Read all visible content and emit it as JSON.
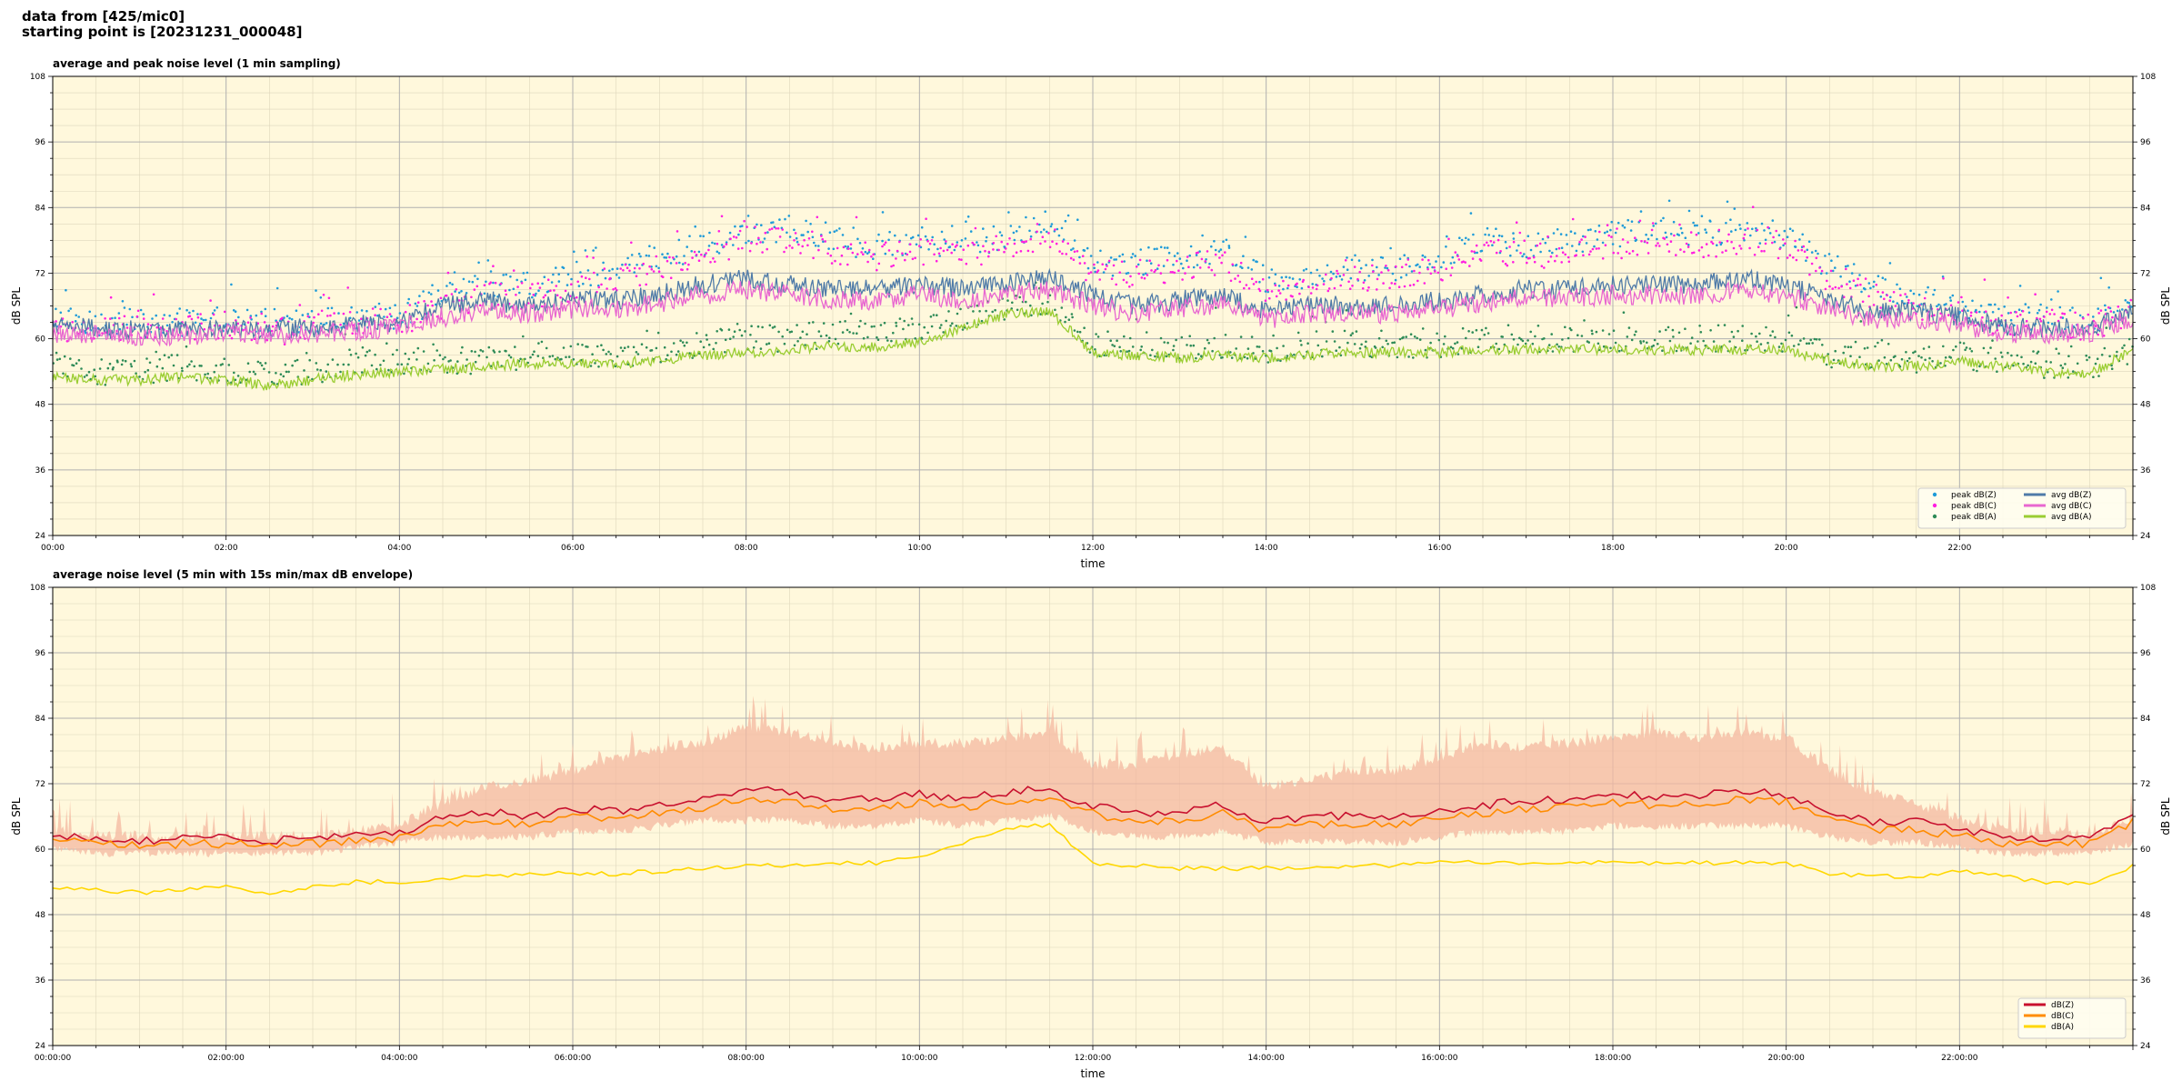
{
  "header": {
    "line1": "data from [425/mic0]",
    "line2": "starting point is [20231231_000048]"
  },
  "chart_data": [
    {
      "type": "scatter+line",
      "title": "average and peak noise level (1 min sampling)",
      "xlabel": "time",
      "ylabel": "dB SPL",
      "ylabel_right": "dB SPL",
      "xlim_hours": [
        0,
        24
      ],
      "ylim": [
        24,
        108
      ],
      "y_ticks": [
        24,
        36,
        48,
        60,
        72,
        84,
        96,
        108
      ],
      "x_tick_labels": [
        "00:00",
        "02:00",
        "04:00",
        "06:00",
        "08:00",
        "10:00",
        "12:00",
        "14:00",
        "16:00",
        "18:00",
        "20:00",
        "22:00"
      ],
      "x_tick_hours": [
        0,
        2,
        4,
        6,
        8,
        10,
        12,
        14,
        16,
        18,
        20,
        22
      ],
      "grid": true,
      "background": "#fff8dc",
      "legend_placement": "lower-right",
      "legend_columns": 2,
      "x_hours": [
        0,
        0.5,
        1,
        1.5,
        2,
        2.5,
        3,
        3.5,
        4,
        4.5,
        5,
        5.5,
        6,
        6.5,
        7,
        7.5,
        8,
        8.5,
        9,
        9.5,
        10,
        10.5,
        11,
        11.5,
        12,
        12.5,
        13,
        13.5,
        14,
        14.5,
        15,
        15.5,
        16,
        16.5,
        17,
        17.5,
        18,
        18.5,
        19,
        19.5,
        20,
        20.5,
        21,
        21.5,
        22,
        22.5,
        23,
        23.5,
        24
      ],
      "series": [
        {
          "name": "peak dB(Z)",
          "kind": "points",
          "color": "#1f9bd8",
          "values": [
            64,
            63,
            63,
            63,
            63,
            63,
            63,
            64,
            64,
            68,
            70,
            70,
            71,
            73,
            75,
            77,
            80,
            80,
            78,
            77,
            78,
            77,
            79,
            81,
            74,
            74,
            75,
            76,
            71,
            71,
            73,
            73,
            75,
            78,
            77,
            78,
            79,
            80,
            79,
            80,
            79,
            73,
            70,
            68,
            66,
            64,
            64,
            63,
            66
          ]
        },
        {
          "name": "peak dB(C)",
          "kind": "points",
          "color": "#ff1fe0",
          "values": [
            62,
            62,
            62,
            62,
            62,
            61,
            62,
            63,
            63,
            66,
            68,
            68,
            69,
            71,
            73,
            75,
            78,
            78,
            76,
            75,
            76,
            75,
            77,
            79,
            72,
            72,
            73,
            74,
            69,
            69,
            71,
            71,
            73,
            76,
            75,
            76,
            77,
            78,
            77,
            78,
            77,
            71,
            68,
            66,
            65,
            63,
            63,
            62,
            65
          ]
        },
        {
          "name": "peak dB(A)",
          "kind": "points",
          "color": "#2e8b57",
          "values": [
            55,
            54,
            54,
            55,
            54,
            54,
            54,
            56,
            56,
            56,
            56,
            57,
            57,
            57,
            58,
            59,
            60,
            60,
            61,
            61,
            62,
            64,
            66,
            67,
            59,
            59,
            58,
            59,
            58,
            59,
            59,
            59,
            59,
            60,
            60,
            60,
            60,
            60,
            60,
            60,
            60,
            57,
            57,
            56,
            57,
            56,
            55,
            55,
            58
          ]
        },
        {
          "name": "avg dB(Z)",
          "kind": "line",
          "color": "#4f7ba8",
          "values": [
            62,
            62,
            61.5,
            61.5,
            62,
            61.5,
            62,
            62.5,
            63,
            66,
            67,
            66,
            67,
            67,
            68,
            70,
            71,
            70,
            69,
            69,
            70,
            69,
            70,
            71,
            68,
            66,
            67,
            68,
            65,
            66,
            66,
            66,
            67,
            68,
            69,
            69,
            70,
            70,
            70,
            71,
            70,
            67,
            65,
            65,
            64,
            62,
            62,
            62,
            65
          ]
        },
        {
          "name": "avg dB(C)",
          "kind": "line",
          "color": "#e867d0",
          "values": [
            61,
            61,
            60.5,
            60.5,
            61,
            60.5,
            61,
            61.5,
            62,
            64,
            65,
            64.5,
            65.5,
            65.5,
            66.5,
            68,
            69,
            68,
            67,
            67,
            68,
            67,
            68,
            69,
            66,
            64.5,
            65.5,
            66.5,
            63.5,
            64.5,
            64.5,
            64.5,
            65.5,
            66.5,
            67.5,
            67.5,
            68,
            68,
            68,
            69,
            68,
            65.5,
            63.5,
            63.5,
            62.5,
            61,
            61,
            61,
            64
          ]
        },
        {
          "name": "avg dB(A)",
          "kind": "line",
          "color": "#9acd32",
          "values": [
            53,
            52.5,
            52.5,
            53,
            52.5,
            51.5,
            52.5,
            53.5,
            54,
            54.5,
            55,
            55.5,
            55.5,
            55.5,
            56,
            57,
            57.5,
            58,
            58.5,
            58.5,
            59.5,
            62,
            64.5,
            65,
            57.5,
            57,
            56.5,
            57,
            56.5,
            57,
            57.5,
            57.5,
            57.5,
            58,
            58,
            58,
            58,
            58,
            58,
            58,
            58,
            56,
            55,
            55,
            56,
            55,
            54,
            53.5,
            58
          ]
        }
      ]
    },
    {
      "type": "line+area",
      "title": "average noise level (5 min with 15s min/max dB envelope)",
      "xlabel": "time",
      "ylabel": "dB SPL",
      "ylabel_right": "dB SPL",
      "xlim_hours": [
        0,
        24
      ],
      "ylim": [
        24,
        108
      ],
      "y_ticks": [
        24,
        36,
        48,
        60,
        72,
        84,
        96,
        108
      ],
      "x_tick_labels": [
        "00:00:00",
        "02:00:00",
        "04:00:00",
        "06:00:00",
        "08:00:00",
        "10:00:00",
        "12:00:00",
        "14:00:00",
        "16:00:00",
        "18:00:00",
        "20:00:00",
        "22:00:00"
      ],
      "x_tick_hours": [
        0,
        2,
        4,
        6,
        8,
        10,
        12,
        14,
        16,
        18,
        20,
        22
      ],
      "grid": true,
      "background": "#fff8dc",
      "legend_placement": "lower-right",
      "legend_columns": 1,
      "x_hours": [
        0,
        0.5,
        1,
        1.5,
        2,
        2.5,
        3,
        3.5,
        4,
        4.5,
        5,
        5.5,
        6,
        6.5,
        7,
        7.5,
        8,
        8.5,
        9,
        9.5,
        10,
        10.5,
        11,
        11.5,
        12,
        12.5,
        13,
        13.5,
        14,
        14.5,
        15,
        15.5,
        16,
        16.5,
        17,
        17.5,
        18,
        18.5,
        19,
        19.5,
        20,
        20.5,
        21,
        21.5,
        22,
        22.5,
        23,
        23.5,
        24
      ],
      "envelope": {
        "color": "#f4b8a0",
        "max": [
          64,
          63,
          63,
          63,
          63,
          63,
          63,
          64,
          65,
          69,
          72,
          73,
          75,
          77,
          79,
          80,
          83,
          82,
          80,
          79,
          80,
          80,
          81,
          82,
          76,
          76,
          78,
          79,
          72,
          73,
          75,
          75,
          77,
          80,
          79,
          80,
          81,
          82,
          81,
          82,
          81,
          75,
          71,
          69,
          66,
          64,
          64,
          63,
          66
        ],
        "min": [
          61,
          60,
          60,
          60,
          60,
          60,
          60,
          61,
          62,
          63,
          63,
          63,
          64,
          64,
          65,
          66,
          66,
          66,
          65,
          65,
          66,
          65,
          66,
          67,
          64,
          63,
          63,
          64,
          62,
          62,
          62,
          62,
          63,
          64,
          64,
          64,
          65,
          65,
          65,
          65,
          65,
          63,
          62,
          62,
          61,
          60,
          60,
          60,
          62
        ]
      },
      "series": [
        {
          "name": "dB(Z)",
          "color": "#c8102e",
          "values": [
            62.5,
            62,
            61.5,
            62,
            62,
            61.5,
            62,
            62.5,
            63,
            66,
            67,
            66,
            67.5,
            67,
            68,
            69,
            71,
            70.5,
            69,
            69,
            70,
            69,
            70.5,
            71,
            68,
            66.5,
            67,
            68,
            65,
            66,
            66,
            66,
            67,
            68,
            69,
            69,
            70,
            69.5,
            70,
            70.5,
            70,
            67,
            65,
            65,
            64,
            62,
            62,
            62,
            66
          ]
        },
        {
          "name": "dB(C)",
          "color": "#ff8c00",
          "values": [
            61.5,
            61,
            60.5,
            61,
            61,
            60.5,
            61,
            61.5,
            62,
            64.5,
            65,
            64.5,
            66,
            65.5,
            66.5,
            67.5,
            69.5,
            69,
            67.5,
            67.5,
            68.5,
            67.5,
            69,
            69.5,
            66.5,
            65,
            65.5,
            66.5,
            63.5,
            64.5,
            64.5,
            64.5,
            65.5,
            66.5,
            67.5,
            67.5,
            68.5,
            68,
            68.5,
            69,
            68.5,
            65.5,
            63.5,
            63.5,
            62.5,
            61,
            61,
            61,
            65
          ]
        },
        {
          "name": "dB(A)",
          "color": "#ffd700",
          "values": [
            53,
            52.5,
            52,
            52.5,
            53,
            51.5,
            53,
            54,
            54,
            54.5,
            55,
            55.5,
            55.5,
            55.5,
            56,
            56.5,
            57,
            57,
            57.5,
            57.5,
            58.5,
            61,
            64,
            64.5,
            57.5,
            57,
            56.5,
            56.5,
            56.5,
            56.5,
            57,
            57,
            57.5,
            57.5,
            57.5,
            57.5,
            57.5,
            57.5,
            57.5,
            57.5,
            57.5,
            55.5,
            55,
            55,
            56,
            55,
            54,
            53.5,
            57
          ]
        }
      ]
    }
  ]
}
